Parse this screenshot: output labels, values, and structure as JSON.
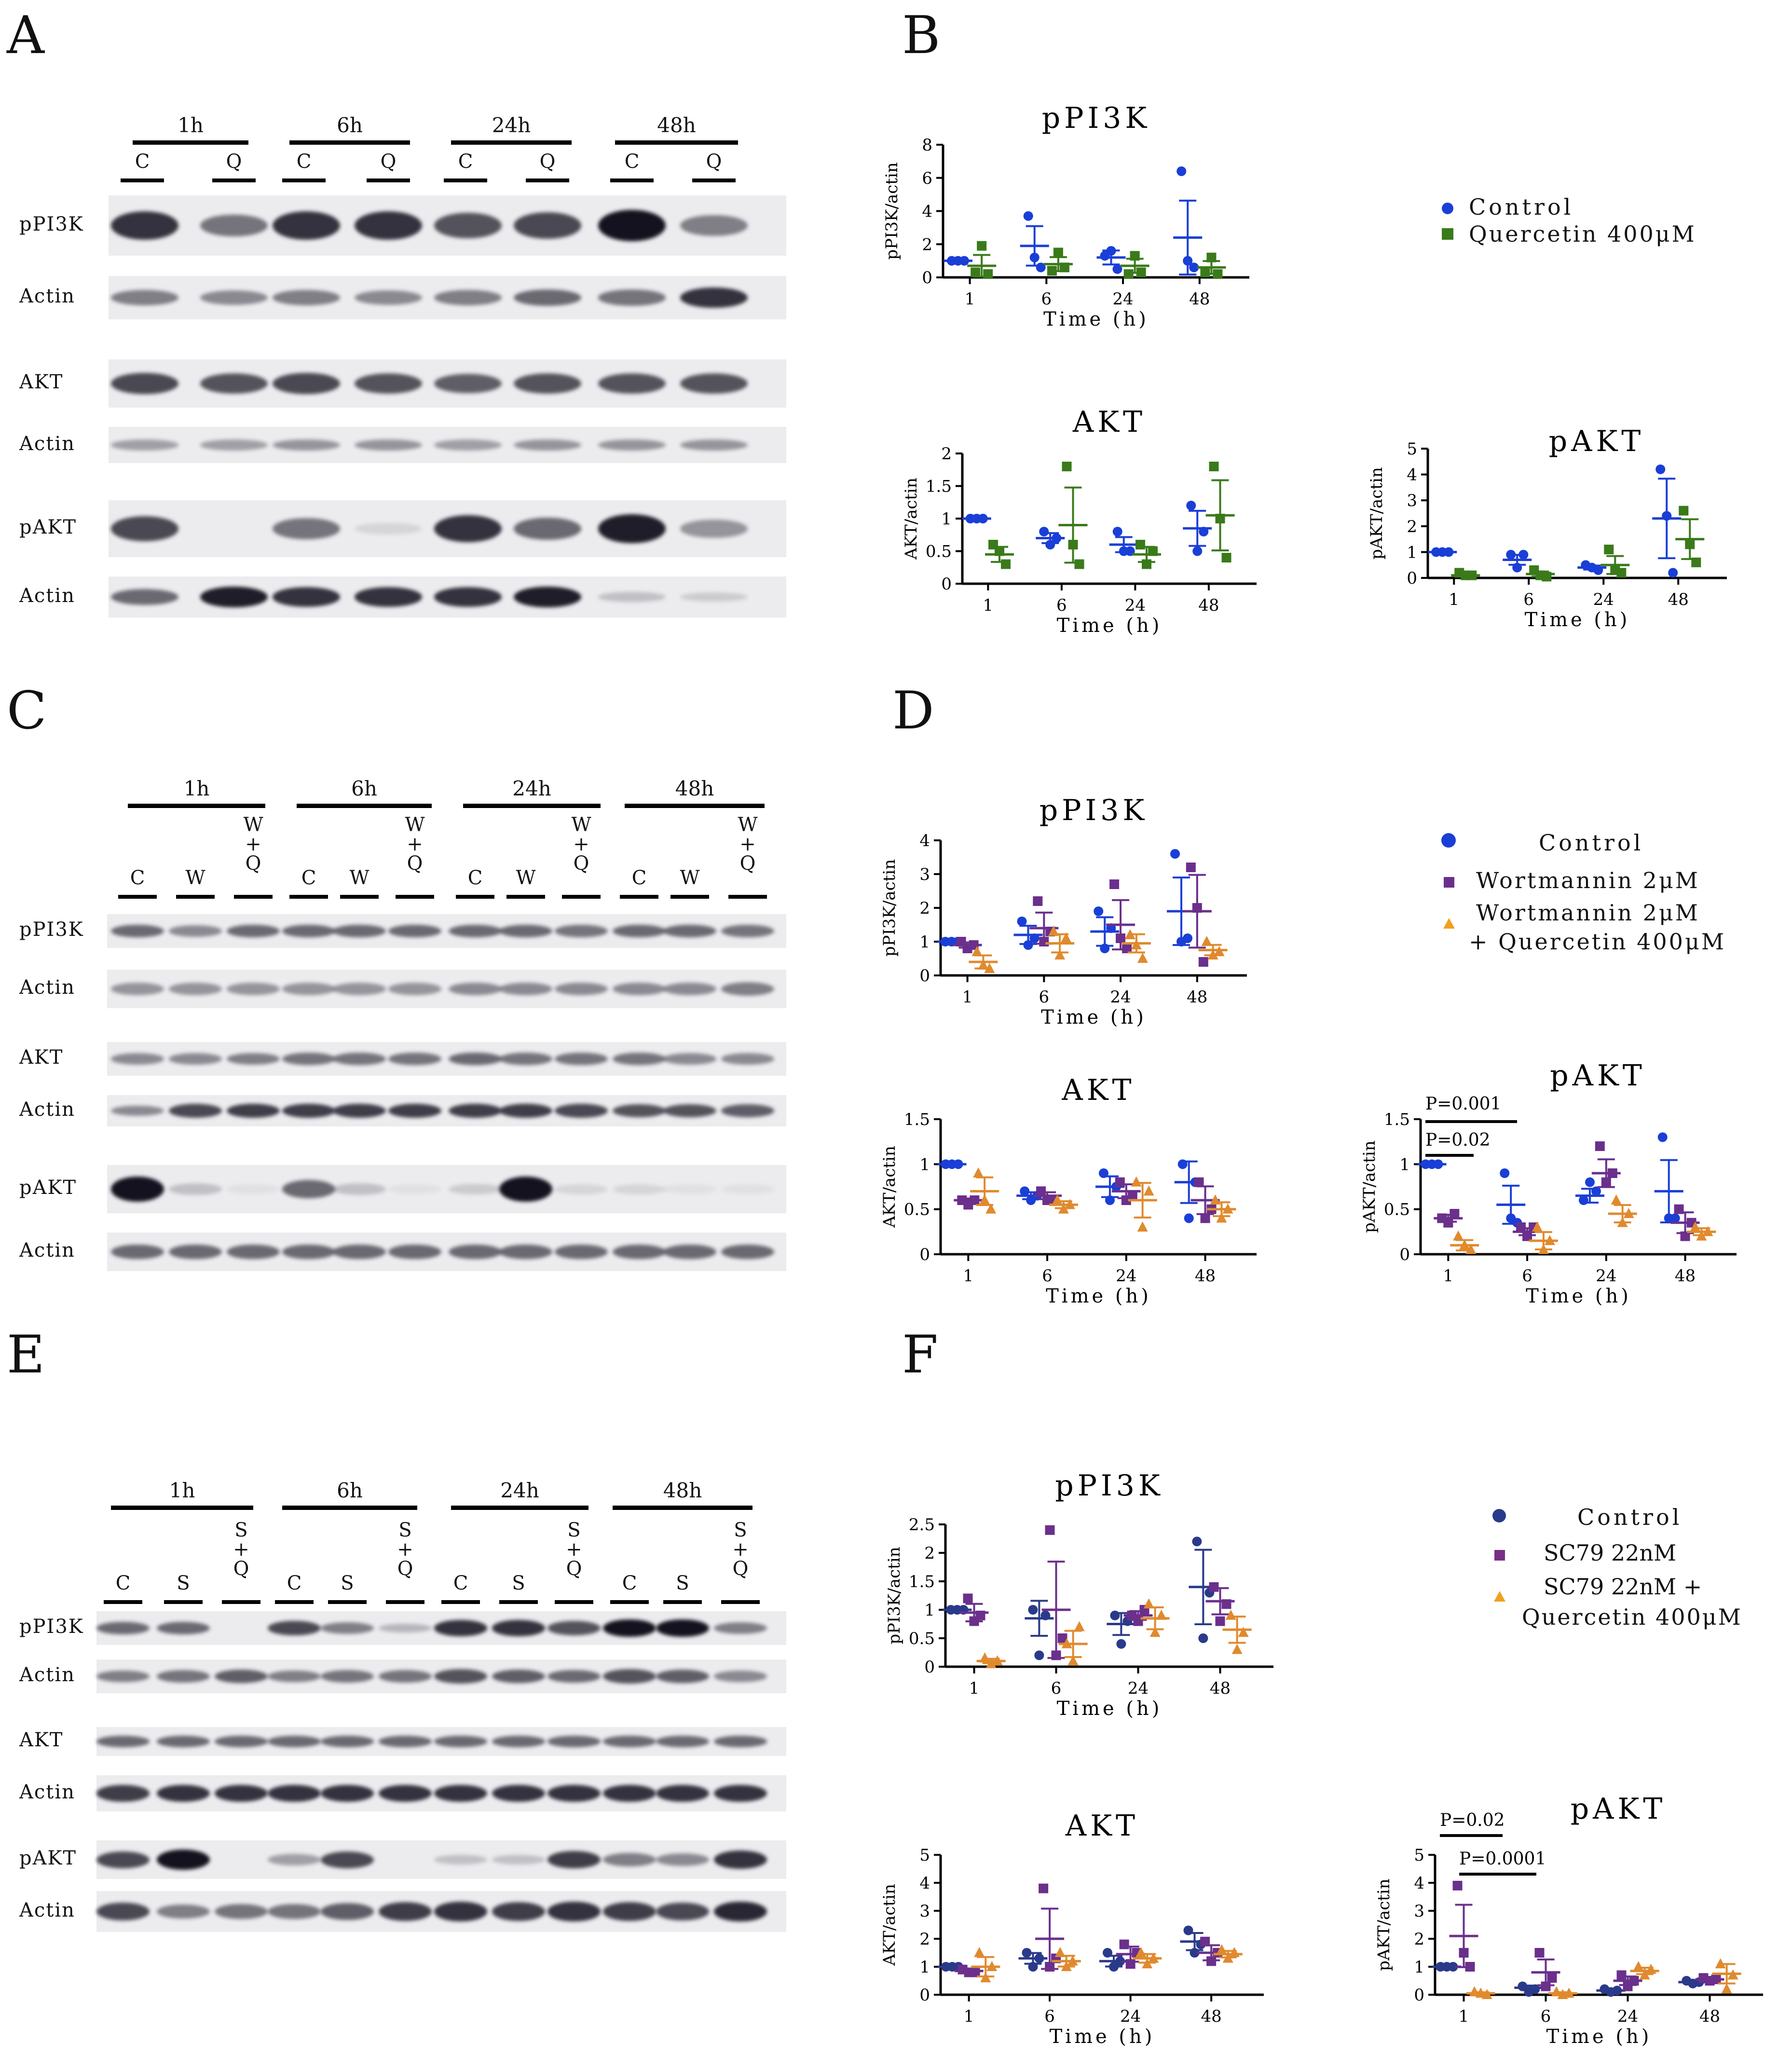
{
  "panels": {
    "A": "A",
    "B": "B",
    "C": "C",
    "D": "D",
    "E": "E",
    "F": "F"
  },
  "colors": {
    "control": "#1a3fd6",
    "control_dark": "#2a3a8a",
    "quercetin": "#3a7a1a",
    "wortmannin": "#6b2f8c",
    "combo": "#e08a2e",
    "sc79": "#7a2d86"
  },
  "blotA": {
    "times": [
      "1h",
      "6h",
      "24h",
      "48h"
    ],
    "lanes": [
      "C",
      "Q",
      "C",
      "Q",
      "C",
      "Q",
      "C",
      "Q"
    ],
    "rows": [
      "pPI3K",
      "Actin",
      "AKT",
      "Actin",
      "pAKT",
      "Actin"
    ]
  },
  "blotC": {
    "times": [
      "1h",
      "6h",
      "24h",
      "48h"
    ],
    "lanes": [
      "C",
      "W",
      "W\n+\nQ",
      "C",
      "W",
      "W\n+\nQ",
      "C",
      "W",
      "W\n+\nQ",
      "C",
      "W",
      "W\n+\nQ"
    ],
    "rows": [
      "pPI3K",
      "Actin",
      "AKT",
      "Actin",
      "pAKT",
      "Actin"
    ]
  },
  "blotE": {
    "times": [
      "1h",
      "6h",
      "24h",
      "48h"
    ],
    "lanes": [
      "C",
      "S",
      "S\n+\nQ",
      "C",
      "S",
      "S\n+\nQ",
      "C",
      "S",
      "S\n+\nQ",
      "C",
      "S",
      "S\n+\nQ"
    ],
    "rows": [
      "pPI3K",
      "Actin",
      "AKT",
      "Actin",
      "pAKT",
      "Actin"
    ]
  },
  "legendB": [
    "Control",
    "Quercetin 400μM"
  ],
  "legendD": [
    "Control",
    "Wortmannin 2μM",
    "Wortmannin 2μM",
    "+ Quercetin 400μM"
  ],
  "legendF": [
    "Control",
    "SC79 22nM",
    "SC79 22nM +",
    "Quercetin 400μM"
  ],
  "chart_data": [
    {
      "panel": "B",
      "type": "scatter",
      "title": "pPI3K",
      "xlabel": "Time (h)",
      "ylabel": "pPI3K/actin",
      "categories": [
        "1",
        "6",
        "24",
        "48"
      ],
      "ylim": [
        0,
        8
      ],
      "yticks": [
        "0",
        "2",
        "4",
        "6",
        "8"
      ],
      "series": [
        {
          "name": "Control",
          "points": [
            [
              1,
              1,
              1
            ],
            [
              3.7,
              1.2,
              0.6
            ],
            [
              1.3,
              1.6,
              0.5
            ],
            [
              6.4,
              1.0,
              0.6
            ]
          ],
          "mean": [
            1,
            1.9,
            1.2,
            2.4
          ]
        },
        {
          "name": "Quercetin 400μM",
          "points": [
            [
              0.3,
              1.9,
              0.2
            ],
            [
              0.4,
              1.5,
              0.6
            ],
            [
              0.2,
              1.3,
              0.3
            ],
            [
              0.3,
              1.2,
              0.2
            ]
          ],
          "mean": [
            0.7,
            0.8,
            0.7,
            0.6
          ]
        }
      ]
    },
    {
      "panel": "B",
      "type": "scatter",
      "title": "AKT",
      "xlabel": "Time (h)",
      "ylabel": "AKT/actin",
      "categories": [
        "1",
        "6",
        "24",
        "48"
      ],
      "ylim": [
        0,
        2
      ],
      "yticks": [
        "0",
        "0.5",
        "1",
        "1.5",
        "2"
      ],
      "series": [
        {
          "name": "Control",
          "points": [
            [
              1,
              1,
              1
            ],
            [
              0.8,
              0.6,
              0.7
            ],
            [
              0.8,
              0.5,
              0.5
            ],
            [
              1.2,
              0.5,
              0.8
            ]
          ],
          "mean": [
            1,
            0.7,
            0.6,
            0.85
          ]
        },
        {
          "name": "Quercetin 400μM",
          "points": [
            [
              0.6,
              0.5,
              0.3
            ],
            [
              1.8,
              0.6,
              0.3
            ],
            [
              0.6,
              0.3,
              0.5
            ],
            [
              1.8,
              1.0,
              0.4
            ]
          ],
          "mean": [
            0.45,
            0.9,
            0.45,
            1.05
          ]
        }
      ]
    },
    {
      "panel": "B",
      "type": "scatter",
      "title": "pAKT",
      "xlabel": "Time (h)",
      "ylabel": "pAKT/actin",
      "categories": [
        "1",
        "6",
        "24",
        "48"
      ],
      "ylim": [
        0,
        5
      ],
      "yticks": [
        "0",
        "1",
        "2",
        "3",
        "4",
        "5"
      ],
      "series": [
        {
          "name": "Control",
          "points": [
            [
              1,
              1,
              1
            ],
            [
              0.9,
              0.4,
              0.9
            ],
            [
              0.5,
              0.4,
              0.3
            ],
            [
              4.2,
              2.4,
              0.2
            ]
          ],
          "mean": [
            1,
            0.7,
            0.4,
            2.3
          ]
        },
        {
          "name": "Quercetin 400μM",
          "points": [
            [
              0.2,
              0.1,
              0.1
            ],
            [
              0.3,
              0.1,
              0.05
            ],
            [
              1.1,
              0.3,
              0.2
            ],
            [
              2.6,
              1.3,
              0.6
            ]
          ],
          "mean": [
            0.1,
            0.15,
            0.5,
            1.5
          ]
        }
      ]
    },
    {
      "panel": "D",
      "type": "scatter",
      "title": "pPI3K",
      "xlabel": "Time (h)",
      "ylabel": "pPI3K/actin",
      "categories": [
        "1",
        "6",
        "24",
        "48"
      ],
      "ylim": [
        0,
        4
      ],
      "yticks": [
        "0",
        "1",
        "2",
        "3",
        "4"
      ],
      "series": [
        {
          "name": "Control",
          "points": [
            [
              1,
              1,
              1
            ],
            [
              1.6,
              0.9,
              1.1
            ],
            [
              1.9,
              0.8,
              1.4
            ],
            [
              3.6,
              1.0,
              1.1
            ]
          ],
          "mean": [
            1,
            1.2,
            1.3,
            1.9
          ]
        },
        {
          "name": "Wortmannin 2μM",
          "points": [
            [
              1.0,
              0.8,
              0.9
            ],
            [
              2.2,
              1.0,
              1.3
            ],
            [
              2.7,
              1.1,
              0.8
            ],
            [
              3.2,
              2.0,
              0.4
            ]
          ],
          "mean": [
            0.9,
            1.4,
            1.5,
            1.9
          ]
        },
        {
          "name": "Wortmannin 2μM + Quercetin 400μM",
          "points": [
            [
              0.7,
              0.3,
              0.2
            ],
            [
              1.3,
              0.6,
              1.1
            ],
            [
              1.2,
              0.9,
              0.5
            ],
            [
              1.0,
              0.6,
              0.7
            ]
          ],
          "mean": [
            0.4,
            0.95,
            0.95,
            0.75
          ]
        }
      ]
    },
    {
      "panel": "D",
      "type": "scatter",
      "title": "AKT",
      "xlabel": "Time (h)",
      "ylabel": "AKT/actin",
      "categories": [
        "1",
        "6",
        "24",
        "48"
      ],
      "ylim": [
        0,
        1.5
      ],
      "yticks": [
        "0",
        "0.5",
        "1",
        "1.5"
      ],
      "series": [
        {
          "name": "Control",
          "points": [
            [
              1,
              1,
              1
            ],
            [
              0.7,
              0.6,
              0.65
            ],
            [
              0.9,
              0.6,
              0.75
            ],
            [
              1.0,
              0.4,
              0.8
            ]
          ],
          "mean": [
            1,
            0.65,
            0.75,
            0.8
          ]
        },
        {
          "name": "Wortmannin 2μM",
          "points": [
            [
              0.6,
              0.55,
              0.6
            ],
            [
              0.7,
              0.6,
              0.6
            ],
            [
              0.8,
              0.6,
              0.65
            ],
            [
              0.8,
              0.4,
              0.5
            ]
          ],
          "mean": [
            0.6,
            0.65,
            0.7,
            0.6
          ]
        },
        {
          "name": "Wortmannin 2μM + Quercetin 400μM",
          "points": [
            [
              0.9,
              0.6,
              0.5
            ],
            [
              0.6,
              0.5,
              0.55
            ],
            [
              0.8,
              0.3,
              0.7
            ],
            [
              0.6,
              0.4,
              0.5
            ]
          ],
          "mean": [
            0.7,
            0.55,
            0.6,
            0.5
          ]
        }
      ]
    },
    {
      "panel": "D",
      "type": "scatter",
      "title": "pAKT",
      "xlabel": "Time (h)",
      "ylabel": "pAKT/actin",
      "categories": [
        "1",
        "6",
        "24",
        "48"
      ],
      "ylim": [
        0,
        1.5
      ],
      "yticks": [
        "0",
        "0.5",
        "1",
        "1.5"
      ],
      "annotations": [
        "P=0.001",
        "P=0.02"
      ],
      "series": [
        {
          "name": "Control",
          "points": [
            [
              1,
              1,
              1
            ],
            [
              0.9,
              0.4,
              0.35
            ],
            [
              0.6,
              0.8,
              0.7
            ],
            [
              1.3,
              0.4,
              0.4
            ]
          ],
          "mean": [
            1,
            0.55,
            0.65,
            0.7
          ]
        },
        {
          "name": "Wortmannin 2μM",
          "points": [
            [
              0.4,
              0.35,
              0.45
            ],
            [
              0.3,
              0.2,
              0.3
            ],
            [
              1.2,
              0.8,
              0.9
            ],
            [
              0.5,
              0.2,
              0.35
            ]
          ],
          "mean": [
            0.4,
            0.25,
            0.9,
            0.35
          ]
        },
        {
          "name": "Wortmannin 2μM + Quercetin 400μM",
          "points": [
            [
              0.2,
              0.1,
              0.05
            ],
            [
              0.3,
              0.05,
              0.15
            ],
            [
              0.6,
              0.35,
              0.45
            ],
            [
              0.3,
              0.2,
              0.25
            ]
          ],
          "mean": [
            0.1,
            0.15,
            0.45,
            0.25
          ]
        }
      ]
    },
    {
      "panel": "F",
      "type": "scatter",
      "title": "pPI3K",
      "xlabel": "Time (h)",
      "ylabel": "pPI3K/actin",
      "categories": [
        "1",
        "6",
        "24",
        "48"
      ],
      "ylim": [
        0,
        2.5
      ],
      "yticks": [
        "0",
        "0.5",
        "1",
        "1.5",
        "2",
        "2.5"
      ],
      "series": [
        {
          "name": "Control",
          "points": [
            [
              1,
              1,
              1
            ],
            [
              1.0,
              0.2,
              0.9
            ],
            [
              0.9,
              0.4,
              0.8
            ],
            [
              2.2,
              0.5,
              1.3
            ]
          ],
          "mean": [
            1,
            0.85,
            0.75,
            1.4
          ]
        },
        {
          "name": "SC79 22nM",
          "points": [
            [
              1.2,
              0.8,
              0.9
            ],
            [
              2.4,
              0.2,
              0.5
            ],
            [
              0.9,
              0.8,
              1.0
            ],
            [
              1.4,
              0.8,
              1.1
            ]
          ],
          "mean": [
            0.95,
            1.0,
            0.9,
            1.15
          ]
        },
        {
          "name": "SC79 22nM + Quercetin 400μM",
          "points": [
            [
              0.15,
              0.05,
              0.1
            ],
            [
              0.4,
              0.1,
              0.7
            ],
            [
              1.1,
              0.6,
              0.9
            ],
            [
              0.9,
              0.3,
              0.6
            ]
          ],
          "mean": [
            0.1,
            0.4,
            0.85,
            0.65
          ]
        }
      ]
    },
    {
      "panel": "F",
      "type": "scatter",
      "title": "AKT",
      "xlabel": "Time (h)",
      "ylabel": "AKT/actin",
      "categories": [
        "1",
        "6",
        "24",
        "48"
      ],
      "ylim": [
        0,
        5
      ],
      "yticks": [
        "0",
        "1",
        "2",
        "3",
        "4",
        "5"
      ],
      "series": [
        {
          "name": "Control",
          "points": [
            [
              1,
              1,
              1
            ],
            [
              1.5,
              1.0,
              1.3
            ],
            [
              1.5,
              1.0,
              1.2
            ],
            [
              2.3,
              1.5,
              1.8
            ]
          ],
          "mean": [
            1,
            1.3,
            1.2,
            1.9
          ]
        },
        {
          "name": "SC79 22nM",
          "points": [
            [
              0.9,
              0.8,
              0.8
            ],
            [
              3.8,
              1.0,
              1.3
            ],
            [
              1.8,
              1.1,
              1.5
            ],
            [
              1.9,
              1.2,
              1.5
            ]
          ],
          "mean": [
            0.85,
            2.0,
            1.45,
            1.5
          ]
        },
        {
          "name": "SC79 22nM + Quercetin 400μM",
          "points": [
            [
              1.5,
              0.6,
              1.0
            ],
            [
              1.5,
              1.0,
              1.2
            ],
            [
              1.5,
              1.1,
              1.3
            ],
            [
              1.6,
              1.3,
              1.5
            ]
          ],
          "mean": [
            1.0,
            1.2,
            1.3,
            1.45
          ]
        }
      ]
    },
    {
      "panel": "F",
      "type": "scatter",
      "title": "pAKT",
      "xlabel": "Time (h)",
      "ylabel": "pAKT/actin",
      "categories": [
        "1",
        "6",
        "24",
        "48"
      ],
      "ylim": [
        0,
        5
      ],
      "yticks": [
        "0",
        "1",
        "2",
        "3",
        "4",
        "5"
      ],
      "annotations": [
        "P=0.02",
        "P=0.0001"
      ],
      "series": [
        {
          "name": "Control",
          "points": [
            [
              1,
              1,
              1
            ],
            [
              0.3,
              0.1,
              0.2
            ],
            [
              0.2,
              0.1,
              0.15
            ],
            [
              0.5,
              0.4,
              0.45
            ]
          ],
          "mean": [
            1,
            0.25,
            0.15,
            0.45
          ]
        },
        {
          "name": "SC79 22nM",
          "points": [
            [
              3.9,
              1.5,
              1.0
            ],
            [
              1.5,
              0.3,
              0.6
            ],
            [
              0.7,
              0.3,
              0.5
            ],
            [
              0.6,
              0.5,
              0.55
            ]
          ],
          "mean": [
            2.1,
            0.8,
            0.5,
            0.55
          ]
        },
        {
          "name": "SC79 22nM + Quercetin 400μM",
          "points": [
            [
              0.1,
              0.05,
              0.0
            ],
            [
              0.1,
              0.0,
              0.05
            ],
            [
              1.0,
              0.7,
              0.9
            ],
            [
              1.1,
              0.2,
              0.7
            ]
          ],
          "mean": [
            0.05,
            0.05,
            0.85,
            0.75
          ]
        }
      ]
    }
  ]
}
